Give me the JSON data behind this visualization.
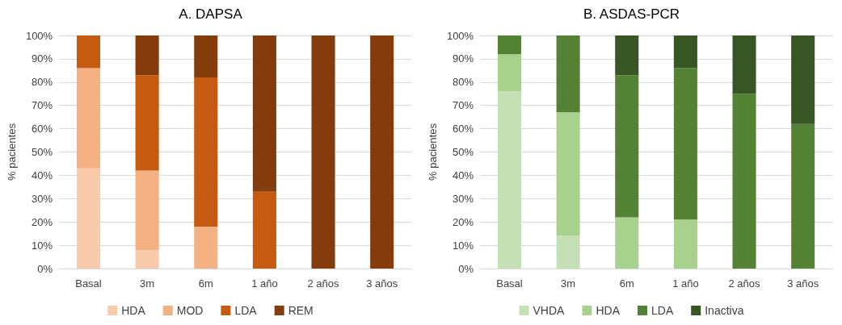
{
  "chart_data": [
    {
      "type": "bar",
      "title": "A. DAPSA",
      "ylabel": "% pacientes",
      "categories": [
        "Basal",
        "3m",
        "6m",
        "1 año",
        "2 años",
        "3 años"
      ],
      "stacked": true,
      "legend": "bottom",
      "grid": "y",
      "ylim": [
        0,
        100
      ],
      "yticks": [
        {
          "value": 0,
          "label": "0%"
        },
        {
          "value": 10,
          "label": "10%"
        },
        {
          "value": 20,
          "label": "20%"
        },
        {
          "value": 30,
          "label": "30%"
        },
        {
          "value": 40,
          "label": "40%"
        },
        {
          "value": 50,
          "label": "50%"
        },
        {
          "value": 60,
          "label": "60%"
        },
        {
          "value": 70,
          "label": "70%"
        },
        {
          "value": 80,
          "label": "80%"
        },
        {
          "value": 90,
          "label": "90%"
        },
        {
          "value": 100,
          "label": "100%"
        }
      ],
      "series": [
        {
          "name": "HDA",
          "color": "#f8cbad",
          "values": [
            43,
            8,
            0,
            0,
            0,
            0
          ]
        },
        {
          "name": "MOD",
          "color": "#f4b183",
          "values": [
            43,
            34,
            18,
            0,
            0,
            0
          ]
        },
        {
          "name": "LDA",
          "color": "#c55a11",
          "values": [
            14,
            41,
            64,
            33,
            0,
            0
          ]
        },
        {
          "name": "REM",
          "color": "#843c0c",
          "values": [
            0,
            17,
            18,
            67,
            100,
            100
          ]
        }
      ]
    },
    {
      "type": "bar",
      "title": "B. ASDAS-PCR",
      "ylabel": "% pacientes",
      "categories": [
        "Basal",
        "3m",
        "6m",
        "1 año",
        "2 años",
        "3 años"
      ],
      "stacked": true,
      "legend": "bottom",
      "grid": "y",
      "ylim": [
        0,
        100
      ],
      "yticks": [
        {
          "value": 0,
          "label": "0%"
        },
        {
          "value": 10,
          "label": "10%"
        },
        {
          "value": 20,
          "label": "20%"
        },
        {
          "value": 30,
          "label": "30%"
        },
        {
          "value": 40,
          "label": "40%"
        },
        {
          "value": 50,
          "label": "50%"
        },
        {
          "value": 60,
          "label": "60%"
        },
        {
          "value": 70,
          "label": "70%"
        },
        {
          "value": 80,
          "label": "80%"
        },
        {
          "value": 90,
          "label": "90%"
        },
        {
          "value": 100,
          "label": "100%"
        }
      ],
      "series": [
        {
          "name": "VHDA",
          "color": "#c5e0b4",
          "values": [
            76,
            14,
            0,
            0,
            0,
            0
          ]
        },
        {
          "name": "HDA",
          "color": "#a9d18e",
          "values": [
            16,
            53,
            22,
            21,
            0,
            0
          ]
        },
        {
          "name": "LDA",
          "color": "#548235",
          "values": [
            8,
            33,
            61,
            65,
            75,
            62
          ]
        },
        {
          "name": "Inactiva",
          "color": "#375623",
          "values": [
            0,
            0,
            17,
            14,
            25,
            38
          ]
        }
      ]
    }
  ]
}
